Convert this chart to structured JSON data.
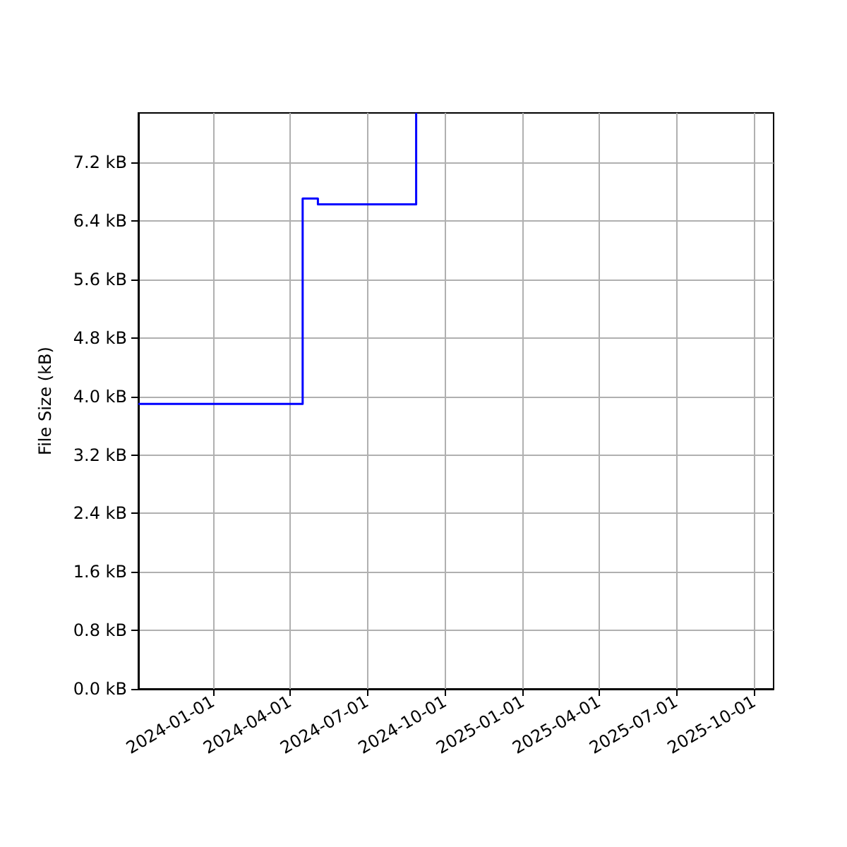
{
  "chart_data": {
    "type": "step",
    "ylabel": "File Size (kB)",
    "x": [
      "2023-10-05",
      "2024-04-16",
      "2024-05-04",
      "2024-08-28"
    ],
    "values": [
      3.9,
      6.71,
      6.63,
      7.88
    ],
    "color": "#0000ff",
    "xlim": [
      "2023-10-05",
      "2025-10-24"
    ],
    "xticks": [
      "2024-01-01",
      "2024-04-01",
      "2024-07-01",
      "2024-10-01",
      "2025-01-01",
      "2025-04-01",
      "2025-07-01",
      "2025-10-01"
    ],
    "ylim": [
      0,
      7.88
    ],
    "yticks": [
      {
        "value": 0,
        "label": "0.0 kB"
      },
      {
        "value": 0.8,
        "label": "0.8 kB"
      },
      {
        "value": 1.6,
        "label": "1.6 kB"
      },
      {
        "value": 2.4,
        "label": "2.4 kB"
      },
      {
        "value": 3.2,
        "label": "3.2 kB"
      },
      {
        "value": 4.0,
        "label": "4.0 kB"
      },
      {
        "value": 4.8,
        "label": "4.8 kB"
      },
      {
        "value": 5.6,
        "label": "5.6 kB"
      },
      {
        "value": 6.4,
        "label": "6.4 kB"
      },
      {
        "value": 7.2,
        "label": "7.2 kB"
      }
    ],
    "grid": true
  }
}
